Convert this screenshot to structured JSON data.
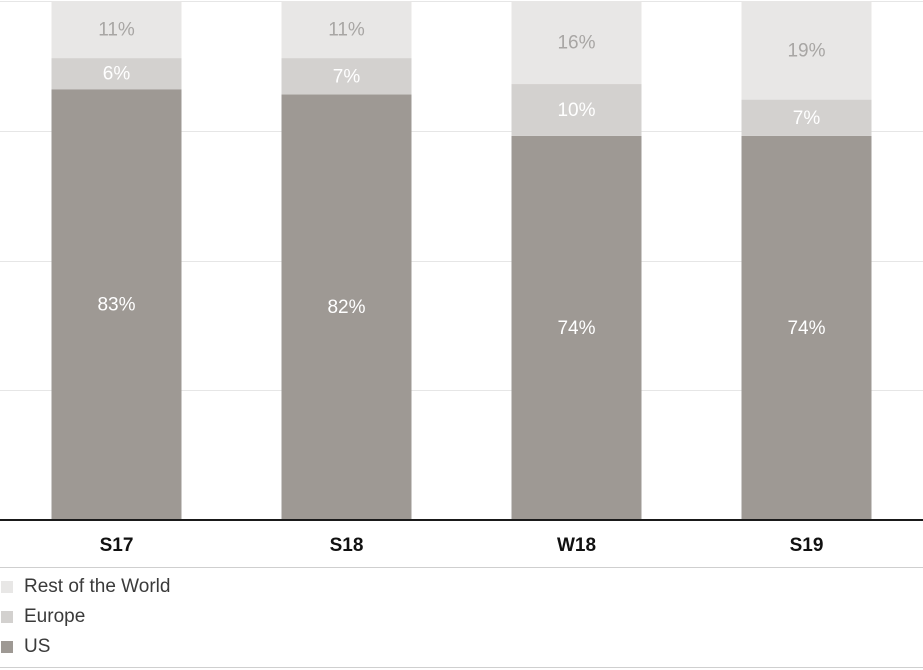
{
  "chart_data": {
    "type": "bar",
    "stacked": true,
    "categories": [
      "S17",
      "S18",
      "W18",
      "S19"
    ],
    "series": [
      {
        "name": "US",
        "values": [
          83,
          82,
          74,
          74
        ],
        "labels": [
          "83%",
          "82%",
          "74%",
          "74%"
        ]
      },
      {
        "name": "Europe",
        "values": [
          6,
          7,
          10,
          7
        ],
        "labels": [
          "6%",
          "7%",
          "10%",
          "7%"
        ]
      },
      {
        "name": "Rest of the World",
        "values": [
          11,
          11,
          16,
          19
        ],
        "labels": [
          "11%",
          "11%",
          "16%",
          "19%"
        ]
      }
    ],
    "legend_order": [
      "Rest of the World",
      "Europe",
      "US"
    ],
    "colors": {
      "US": "#9e9994",
      "Europe": "#d3d1cf",
      "Rest of the World": "#e8e7e6"
    },
    "label_colors": {
      "US": "#ffffff",
      "Europe": "#ffffff",
      "Rest of the World": "#a8a6a4"
    },
    "ylim": [
      0,
      100
    ],
    "grid": true,
    "legend_placement": "bottom-left"
  }
}
